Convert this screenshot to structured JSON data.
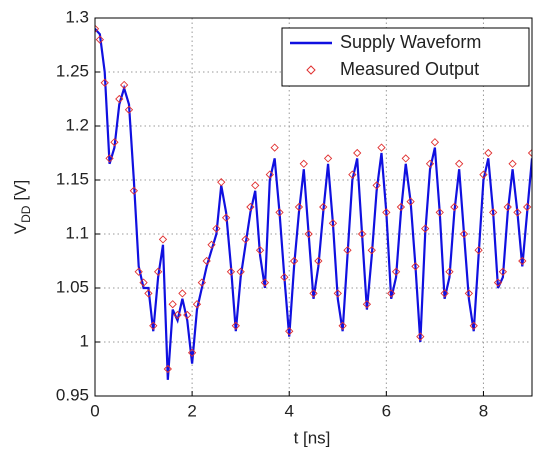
{
  "chart_data": {
    "type": "line",
    "xlabel": "t [ns]",
    "ylabel": {
      "symbol": "V",
      "subscript": "DD",
      "unit": "[V]"
    },
    "x": [
      0,
      0.1,
      0.2,
      0.3,
      0.4,
      0.5,
      0.6,
      0.7,
      0.8,
      0.9,
      1.0,
      1.1,
      1.2,
      1.3,
      1.4,
      1.5,
      1.6,
      1.7,
      1.8,
      1.9,
      2.0,
      2.1,
      2.2,
      2.3,
      2.4,
      2.5,
      2.6,
      2.7,
      2.8,
      2.9,
      3.0,
      3.1,
      3.2,
      3.3,
      3.4,
      3.5,
      3.6,
      3.7,
      3.8,
      3.9,
      4.0,
      4.1,
      4.2,
      4.3,
      4.4,
      4.5,
      4.6,
      4.7,
      4.8,
      4.9,
      5.0,
      5.1,
      5.2,
      5.3,
      5.4,
      5.5,
      5.6,
      5.7,
      5.8,
      5.9,
      6.0,
      6.1,
      6.2,
      6.3,
      6.4,
      6.5,
      6.6,
      6.7,
      6.8,
      6.9,
      7.0,
      7.1,
      7.2,
      7.3,
      7.4,
      7.5,
      7.6,
      7.7,
      7.8,
      7.9,
      8.0,
      8.1,
      8.2,
      8.3,
      8.4,
      8.5,
      8.6,
      8.7,
      8.8,
      8.9,
      9.0
    ],
    "series": [
      {
        "name": "Supply Waveform",
        "color": "#1010e0",
        "style": "line",
        "values": [
          1.29,
          1.285,
          1.25,
          1.165,
          1.18,
          1.22,
          1.235,
          1.22,
          1.15,
          1.07,
          1.05,
          1.05,
          1.01,
          1.06,
          1.09,
          0.965,
          1.03,
          1.02,
          1.04,
          1.02,
          0.98,
          1.03,
          1.05,
          1.07,
          1.085,
          1.1,
          1.145,
          1.12,
          1.07,
          1.01,
          1.06,
          1.09,
          1.12,
          1.14,
          1.08,
          1.05,
          1.15,
          1.17,
          1.12,
          1.06,
          1.005,
          1.07,
          1.12,
          1.16,
          1.1,
          1.04,
          1.07,
          1.12,
          1.165,
          1.11,
          1.04,
          1.01,
          1.08,
          1.15,
          1.17,
          1.1,
          1.03,
          1.08,
          1.14,
          1.175,
          1.12,
          1.04,
          1.06,
          1.12,
          1.165,
          1.13,
          1.07,
          1.0,
          1.1,
          1.16,
          1.18,
          1.12,
          1.04,
          1.06,
          1.12,
          1.16,
          1.1,
          1.04,
          1.01,
          1.08,
          1.15,
          1.17,
          1.12,
          1.05,
          1.06,
          1.12,
          1.16,
          1.12,
          1.07,
          1.12,
          1.17
        ]
      },
      {
        "name": "Measured Output",
        "color": "#e03030",
        "style": "marker",
        "values": [
          1.29,
          1.28,
          1.24,
          1.17,
          1.185,
          1.225,
          1.238,
          1.215,
          1.14,
          1.065,
          1.055,
          1.045,
          1.015,
          1.065,
          1.095,
          0.975,
          1.035,
          1.025,
          1.045,
          1.025,
          0.99,
          1.035,
          1.055,
          1.075,
          1.09,
          1.105,
          1.148,
          1.115,
          1.065,
          1.015,
          1.065,
          1.095,
          1.125,
          1.145,
          1.085,
          1.055,
          1.155,
          1.18,
          1.12,
          1.06,
          1.01,
          1.075,
          1.125,
          1.165,
          1.1,
          1.045,
          1.075,
          1.125,
          1.17,
          1.11,
          1.045,
          1.015,
          1.085,
          1.155,
          1.175,
          1.1,
          1.035,
          1.085,
          1.145,
          1.18,
          1.12,
          1.045,
          1.065,
          1.125,
          1.17,
          1.13,
          1.07,
          1.005,
          1.105,
          1.165,
          1.185,
          1.12,
          1.045,
          1.065,
          1.125,
          1.165,
          1.1,
          1.045,
          1.015,
          1.085,
          1.155,
          1.175,
          1.12,
          1.055,
          1.065,
          1.125,
          1.165,
          1.12,
          1.075,
          1.125,
          1.175
        ]
      }
    ],
    "xlim": [
      0,
      9
    ],
    "xticks": [
      0,
      2,
      4,
      6,
      8
    ],
    "ylim": [
      0.95,
      1.3
    ],
    "yticks": [
      0.95,
      1,
      1.05,
      1.1,
      1.15,
      1.2,
      1.25,
      1.3
    ],
    "grid": true,
    "legend": "upper right"
  }
}
